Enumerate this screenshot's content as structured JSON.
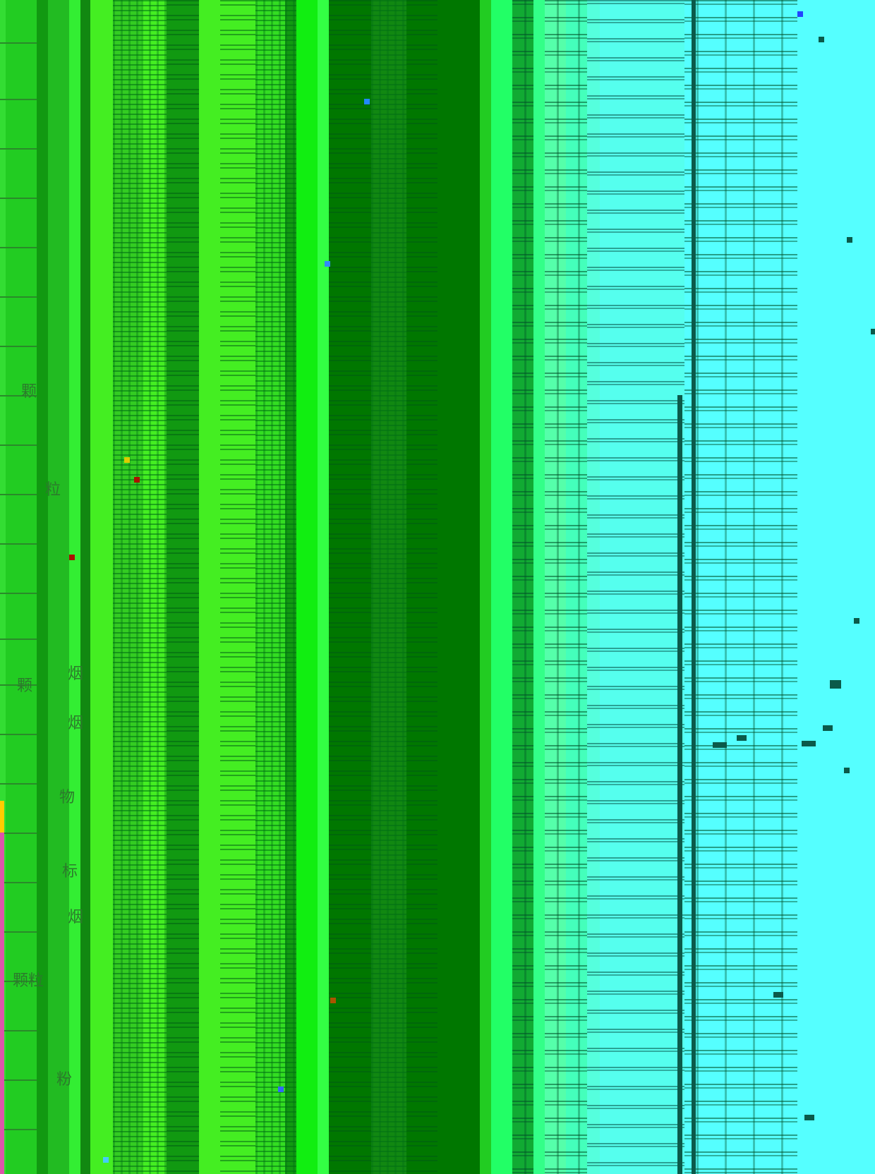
{
  "colors": {
    "bg_cyan": "#55ffff",
    "bright_green": "#44ee22",
    "mid_green": "#22cc22",
    "dark_green": "#007700",
    "mint": "#33ff88",
    "teal_line": "#0b5a4a",
    "glyph": "#2c7a2c"
  },
  "glyphs": [
    {
      "id": "g1",
      "text": "颗"
    },
    {
      "id": "g2",
      "text": "粒"
    },
    {
      "id": "g3",
      "text": "颗"
    },
    {
      "id": "g4",
      "text": "颗粒"
    },
    {
      "id": "g5",
      "text": "烟"
    },
    {
      "id": "g6",
      "text": "烟"
    },
    {
      "id": "g7",
      "text": "烟"
    },
    {
      "id": "g8",
      "text": "物"
    },
    {
      "id": "g9",
      "text": "粉"
    },
    {
      "id": "g10",
      "text": "标"
    }
  ]
}
